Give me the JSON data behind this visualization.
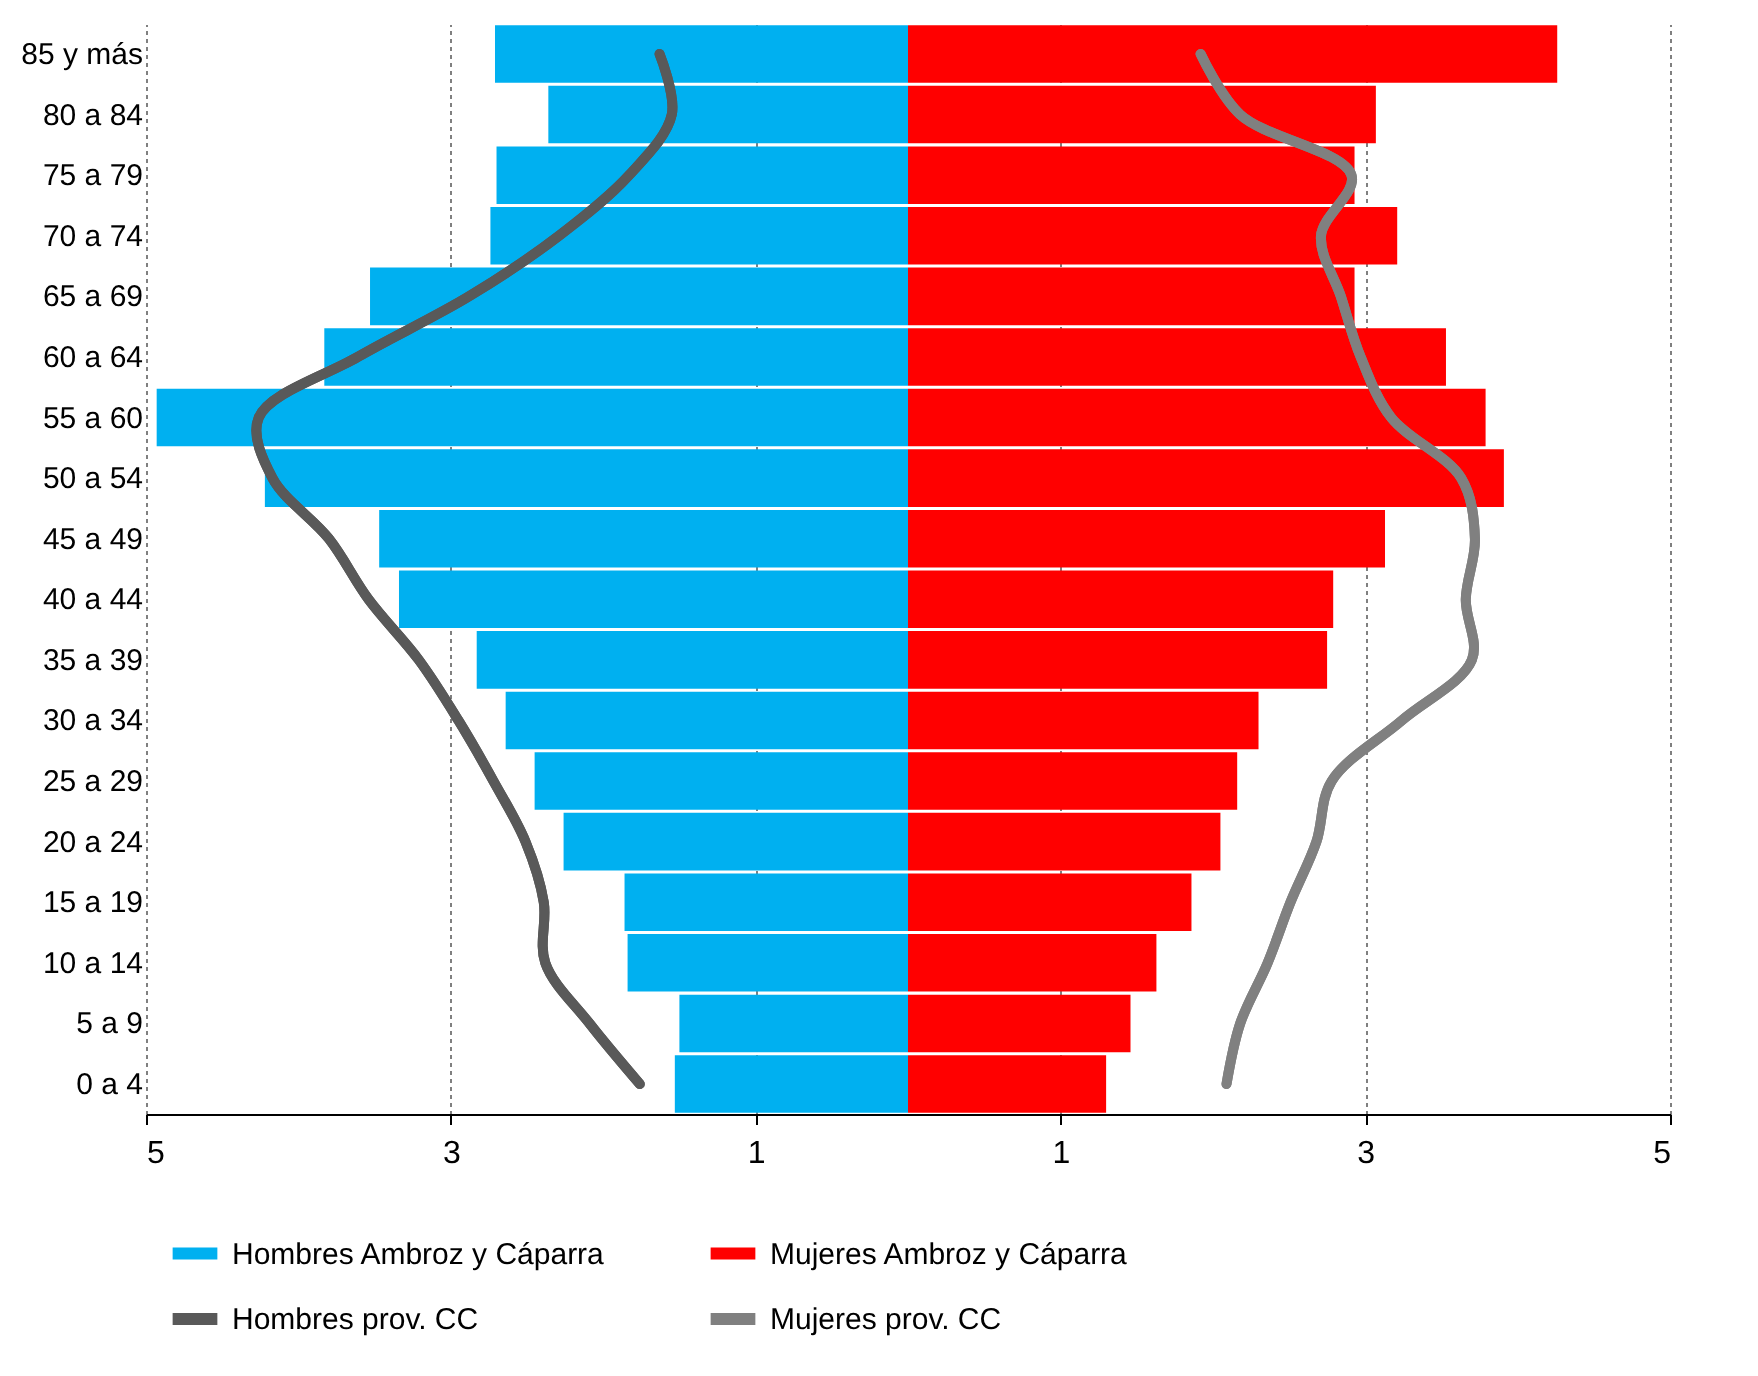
{
  "chart_data": {
    "type": "bar",
    "orientation": "horizontal",
    "categories": [
      "85 y más",
      "80 a 84",
      "75 a 79",
      "70 a 74",
      "65 a 69",
      "60 a 64",
      "55 a 60",
      "50 a 54",
      "45 a 49",
      "40 a 44",
      "35 a 39",
      "30 a 34",
      "25 a 29",
      "20 a 24",
      "15 a 19",
      "10 a 14",
      "5 a 9",
      "0 a 4"
    ],
    "series": [
      {
        "name": "Hombres Ambroz y Cáparra",
        "color": "#00b0f0",
        "values": [
          -2.71,
          -2.36,
          -2.7,
          -2.74,
          -3.53,
          -3.83,
          -4.93,
          -4.22,
          -3.47,
          -3.34,
          -2.83,
          -2.64,
          -2.45,
          -2.26,
          -1.86,
          -1.84,
          -1.5,
          -1.53
        ]
      },
      {
        "name": "Mujeres Ambroz y Cáparra",
        "color": "#ff0000",
        "values": [
          4.26,
          3.07,
          2.93,
          3.21,
          2.93,
          3.53,
          3.79,
          3.91,
          3.13,
          2.79,
          2.75,
          2.3,
          2.16,
          2.05,
          1.86,
          1.63,
          1.46,
          1.3
        ]
      },
      {
        "name": "Hombres prov. CC",
        "type": "line",
        "color": "#595959",
        "values": [
          -1.63,
          -1.55,
          -1.83,
          -2.29,
          -2.88,
          -3.61,
          -4.26,
          -4.17,
          -3.8,
          -3.54,
          -3.21,
          -2.95,
          -2.72,
          -2.51,
          -2.39,
          -2.38,
          -2.09,
          -1.76
        ]
      },
      {
        "name": "Mujeres prov. CC",
        "type": "line",
        "color": "#808080",
        "values": [
          1.92,
          2.18,
          2.91,
          2.71,
          2.84,
          2.97,
          3.17,
          3.63,
          3.72,
          3.66,
          3.7,
          3.24,
          2.78,
          2.68,
          2.51,
          2.36,
          2.18,
          2.09
        ]
      }
    ],
    "xlim": [
      -5,
      5
    ],
    "xticks": [
      {
        "value": -5,
        "label": "5"
      },
      {
        "value": -3,
        "label": "3"
      },
      {
        "value": -1,
        "label": "1"
      },
      {
        "value": 1,
        "label": "1"
      },
      {
        "value": 3,
        "label": "3"
      },
      {
        "value": 5,
        "label": "5"
      }
    ],
    "stacked": true,
    "grid": "x",
    "legend": "bottom",
    "line_style": "solid",
    "marker": "none"
  }
}
